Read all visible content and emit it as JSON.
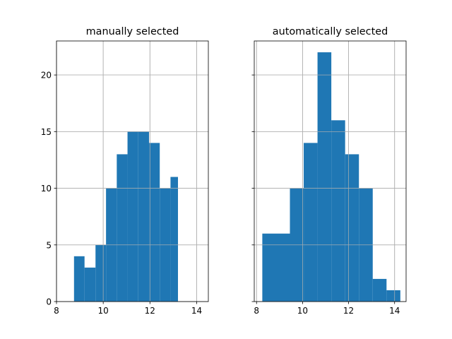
{
  "chart_data": [
    {
      "type": "histogram",
      "title": "manually selected",
      "xlim": [
        8,
        14.5
      ],
      "ylim": [
        0,
        23
      ],
      "xticks": [
        8,
        10,
        12,
        14
      ],
      "yticks": [
        0,
        5,
        10,
        15,
        20
      ],
      "grid": true,
      "bar_color": "#1f77b4",
      "bins": [
        {
          "x0": 8.75,
          "x1": 9.2,
          "value": 4
        },
        {
          "x0": 9.2,
          "x1": 9.67,
          "value": 3
        },
        {
          "x0": 9.67,
          "x1": 10.12,
          "value": 5
        },
        {
          "x0": 10.12,
          "x1": 10.58,
          "value": 10
        },
        {
          "x0": 10.58,
          "x1": 11.04,
          "value": 13
        },
        {
          "x0": 11.04,
          "x1": 11.5,
          "value": 15
        },
        {
          "x0": 11.5,
          "x1": 11.96,
          "value": 15
        },
        {
          "x0": 11.96,
          "x1": 12.42,
          "value": 14
        },
        {
          "x0": 12.42,
          "x1": 12.88,
          "value": 10
        },
        {
          "x0": 12.88,
          "x1": 13.2,
          "value": 11
        }
      ]
    },
    {
      "type": "histogram",
      "title": "automatically selected",
      "xlim": [
        7.9,
        14.5
      ],
      "ylim": [
        0,
        23
      ],
      "xticks": [
        8,
        10,
        12,
        14
      ],
      "yticks": [
        0,
        5,
        10,
        15,
        20
      ],
      "grid": true,
      "bar_color": "#1f77b4",
      "bins": [
        {
          "x0": 8.25,
          "x1": 9.45,
          "value": 6
        },
        {
          "x0": 9.45,
          "x1": 10.05,
          "value": 10
        },
        {
          "x0": 10.05,
          "x1": 10.65,
          "value": 14
        },
        {
          "x0": 10.65,
          "x1": 11.25,
          "value": 22
        },
        {
          "x0": 11.25,
          "x1": 11.85,
          "value": 16
        },
        {
          "x0": 11.85,
          "x1": 12.45,
          "value": 13
        },
        {
          "x0": 12.45,
          "x1": 13.05,
          "value": 10
        },
        {
          "x0": 13.05,
          "x1": 13.65,
          "value": 2
        },
        {
          "x0": 13.65,
          "x1": 14.25,
          "value": 1
        }
      ]
    }
  ]
}
